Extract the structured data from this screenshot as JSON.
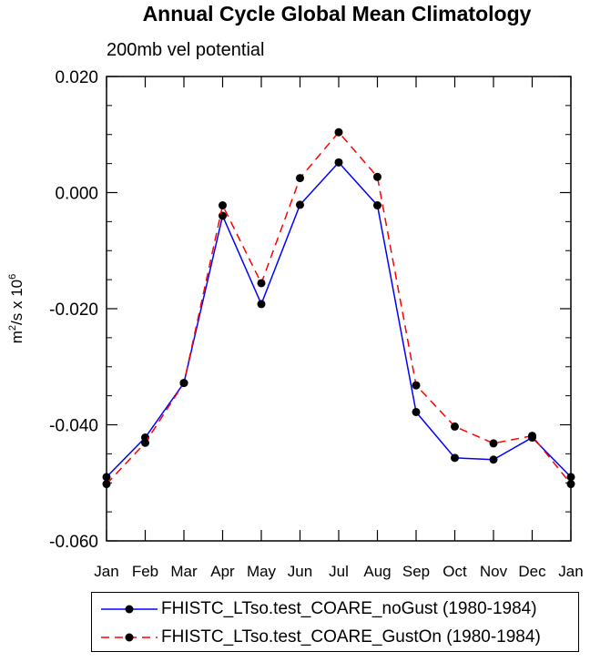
{
  "chart_data": {
    "type": "line",
    "title": "Annual Cycle Global Mean Climatology",
    "subtitle": "200mb vel potential",
    "ylabel": "m²/s x 10⁶",
    "ylabel_parts": {
      "base": "m",
      "sup1": "2",
      "mid": "/s x 10",
      "sup2": "6"
    },
    "xlabel": "",
    "categories": [
      "Jan",
      "Feb",
      "Mar",
      "Apr",
      "May",
      "Jun",
      "Jul",
      "Aug",
      "Sep",
      "Oct",
      "Nov",
      "Dec",
      "Jan"
    ],
    "ylim": [
      -0.06,
      0.02
    ],
    "yticks": [
      -0.06,
      -0.04,
      -0.02,
      0.0,
      0.02
    ],
    "ytick_labels": [
      "-0.060",
      "-0.040",
      "-0.020",
      "0.000",
      "0.020"
    ],
    "series": [
      {
        "name": "FHISTC_LTso.test_COARE_noGust (1980-1984)",
        "color": "#0000ff",
        "dash": "solid",
        "marker": "circle",
        "values": [
          -0.049,
          -0.0422,
          -0.0328,
          -0.004,
          -0.0192,
          -0.0021,
          0.0052,
          -0.0022,
          -0.0378,
          -0.0457,
          -0.046,
          -0.0422,
          -0.049
        ]
      },
      {
        "name": "FHISTC_LTso.test_COARE_GustOn (1980-1984)",
        "color": "#ff0000",
        "dash": "dashed",
        "marker": "circle",
        "values": [
          -0.0502,
          -0.0431,
          -0.0328,
          -0.0022,
          -0.0156,
          0.0025,
          0.0104,
          0.0027,
          -0.0332,
          -0.0403,
          -0.0432,
          -0.0419,
          -0.0502
        ]
      }
    ],
    "legend_position": "bottom"
  }
}
